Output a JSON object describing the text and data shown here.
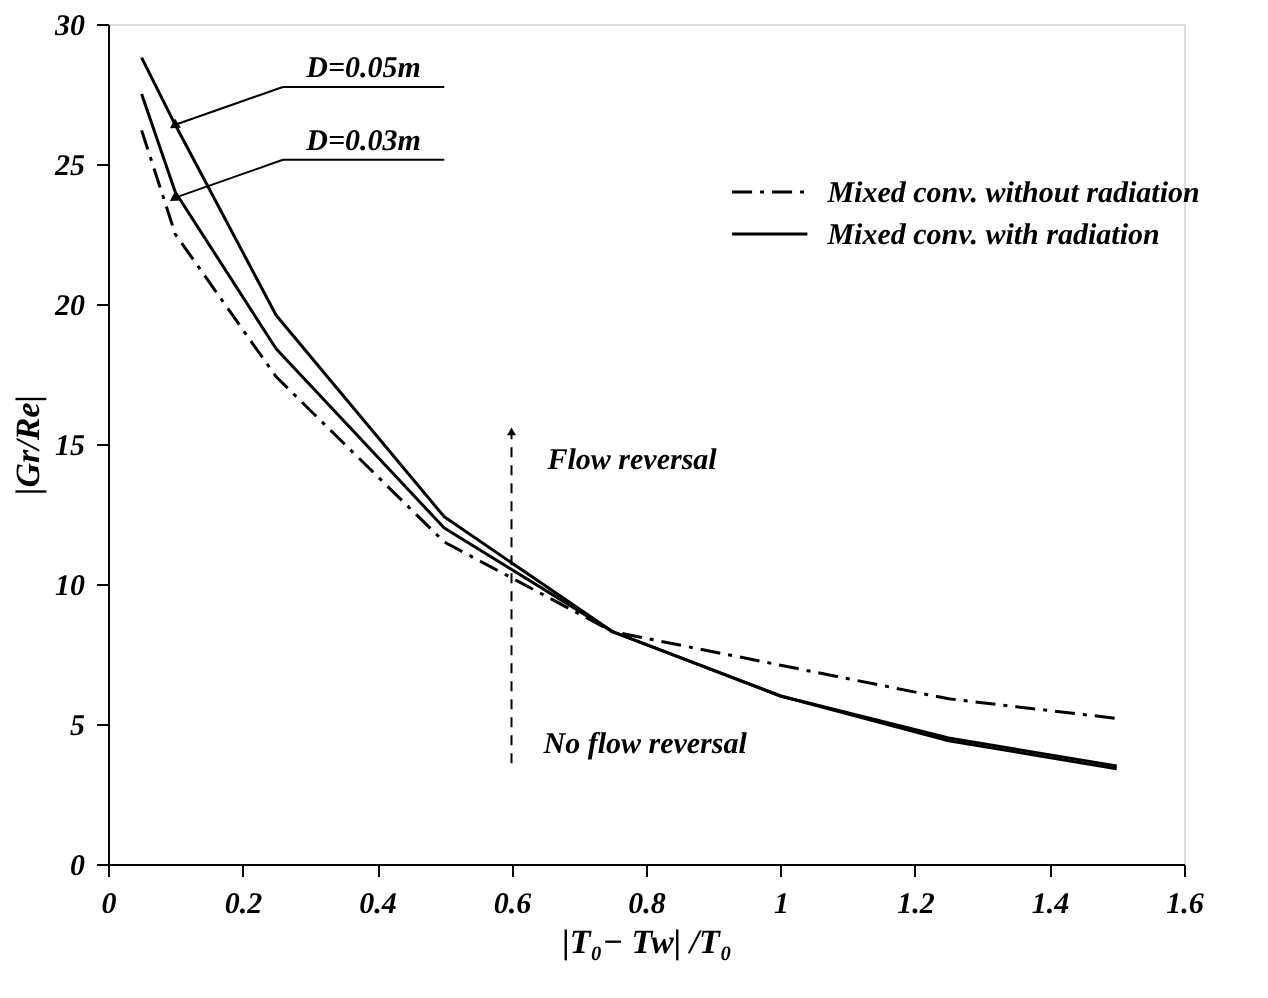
{
  "chart_data": {
    "type": "line",
    "xlabel": "|T₀− Tw| /T₀",
    "ylabel": "|Gr/Re|",
    "x": [
      0.05,
      0.1,
      0.25,
      0.5,
      0.75,
      1.0,
      1.25,
      1.5
    ],
    "series": [
      {
        "name": "Mixed conv. without radiation",
        "color": "#000000",
        "line_style": "dashdot",
        "values": [
          26.2,
          22.5,
          17.4,
          11.5,
          8.3,
          7.1,
          5.9,
          5.2
        ]
      },
      {
        "name": "Mixed conv. with radiation",
        "color": "#000000",
        "line_style": "solid",
        "values": [
          28.8,
          26.4,
          19.6,
          12.4,
          8.3,
          6.0,
          4.5,
          3.5
        ]
      },
      {
        "color": "#000000",
        "line_style": "solid",
        "values": [
          27.5,
          24.0,
          18.4,
          12.0,
          8.3,
          6.0,
          4.4,
          3.4
        ]
      }
    ],
    "xlim": [
      0,
      1.6
    ],
    "xticks": [
      0,
      0.2,
      0.4,
      0.6,
      0.8,
      1,
      1.2,
      1.4,
      1.6
    ],
    "ylim": [
      0,
      30
    ],
    "yticks": [
      0,
      5,
      10,
      15,
      20,
      25,
      30
    ],
    "annotations": [
      {
        "text": "D=0.05m",
        "x": 0.1,
        "y": 26.4
      },
      {
        "text": "D=0.03m",
        "x": 0.1,
        "y": 23.8
      },
      "Flow reversal",
      "No flow reversal"
    ],
    "grid": false,
    "legend": "top right",
    "marker": "none"
  }
}
